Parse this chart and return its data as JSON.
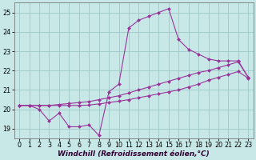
{
  "background_color": "#c8e8e8",
  "grid_color": "#a0c8c8",
  "line_color": "#993399",
  "xlabel": "Windchill (Refroidissement éolien,°C)",
  "xlabel_fontsize": 6.5,
  "tick_fontsize": 5.8,
  "xlim": [
    -0.5,
    23.5
  ],
  "ylim": [
    18.5,
    25.5
  ],
  "yticks": [
    19,
    20,
    21,
    22,
    23,
    24,
    25
  ],
  "xticks": [
    0,
    1,
    2,
    3,
    4,
    5,
    6,
    7,
    8,
    9,
    10,
    11,
    12,
    13,
    14,
    15,
    16,
    17,
    18,
    19,
    20,
    21,
    22,
    23
  ],
  "series1_x": [
    0,
    1,
    2,
    3,
    4,
    5,
    6,
    7,
    8,
    9,
    10,
    11,
    12,
    13,
    14,
    15,
    16,
    17,
    18,
    19,
    20,
    21,
    22,
    23
  ],
  "series1_y": [
    20.2,
    20.2,
    20.0,
    19.4,
    19.8,
    19.1,
    19.1,
    19.2,
    18.65,
    20.9,
    21.3,
    24.2,
    24.6,
    24.8,
    25.0,
    25.2,
    23.6,
    23.1,
    22.85,
    22.6,
    22.5,
    22.5,
    22.5,
    21.65
  ],
  "series2_x": [
    0,
    1,
    2,
    3,
    4,
    5,
    6,
    7,
    8,
    9,
    10,
    11,
    12,
    13,
    14,
    15,
    16,
    17,
    18,
    19,
    20,
    21,
    22,
    23
  ],
  "series2_y": [
    20.2,
    20.2,
    20.2,
    20.2,
    20.25,
    20.3,
    20.35,
    20.4,
    20.5,
    20.6,
    20.7,
    20.85,
    21.0,
    21.15,
    21.3,
    21.45,
    21.6,
    21.75,
    21.9,
    22.0,
    22.15,
    22.3,
    22.45,
    21.65
  ],
  "series3_x": [
    0,
    1,
    2,
    3,
    4,
    5,
    6,
    7,
    8,
    9,
    10,
    11,
    12,
    13,
    14,
    15,
    16,
    17,
    18,
    19,
    20,
    21,
    22,
    23
  ],
  "series3_y": [
    20.2,
    20.2,
    20.2,
    20.2,
    20.2,
    20.2,
    20.2,
    20.22,
    20.28,
    20.35,
    20.42,
    20.5,
    20.6,
    20.7,
    20.8,
    20.9,
    21.0,
    21.15,
    21.3,
    21.5,
    21.65,
    21.8,
    21.95,
    21.6
  ]
}
